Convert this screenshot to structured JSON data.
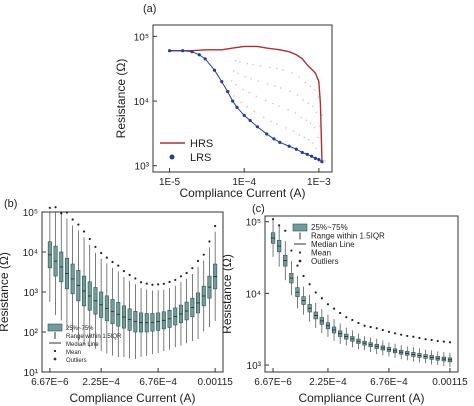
{
  "colors": {
    "hrs": "#b03030",
    "lrs": "#1f3f9f",
    "box_fill": "#6e9d9b",
    "text": "#222222"
  },
  "chart_data": [
    {
      "panel_label": "(a)",
      "type": "line",
      "xscale": "log",
      "yscale": "log",
      "xlabel": "Compliance Current (A)",
      "ylabel": "Resistance (Ω)",
      "x_tick_labels": [
        "1E-5",
        "1E−4",
        "1E−3"
      ],
      "y_tick_labels": [
        "10³",
        "10⁴",
        "10⁵"
      ],
      "xlim": [
        6e-06,
        0.0015
      ],
      "ylim": [
        800,
        150000
      ],
      "legend": {
        "position": "bottom-left",
        "entries": [
          "HRS",
          "LRS"
        ]
      },
      "series": [
        {
          "name": "HRS",
          "marker": "line",
          "x": [
            1e-05,
            2e-05,
            3e-05,
            5e-05,
            7e-05,
            0.0001,
            0.00015,
            0.0002,
            0.0003,
            0.0004,
            0.0005,
            0.0006,
            0.0007,
            0.0008,
            0.0009,
            0.001,
            0.00105,
            0.0011
          ],
          "y": [
            60000,
            60000,
            62000,
            62000,
            66000,
            70000,
            70000,
            66000,
            62000,
            58000,
            52000,
            45000,
            36000,
            31000,
            27000,
            20000,
            9000,
            1200
          ]
        },
        {
          "name": "LRS",
          "marker": "dot",
          "x": [
            1e-05,
            1.5e-05,
            2e-05,
            2.5e-05,
            3e-05,
            4e-05,
            5e-05,
            6e-05,
            7e-05,
            8e-05,
            0.0001,
            0.00012,
            0.00015,
            0.0002,
            0.00025,
            0.0003,
            0.0004,
            0.0005,
            0.0006,
            0.0007,
            0.0008,
            0.0009,
            0.001,
            0.0011
          ],
          "y": [
            60000,
            60000,
            58000,
            52000,
            45000,
            30000,
            20000,
            14000,
            10000,
            8000,
            6000,
            5000,
            4000,
            3100,
            2600,
            2300,
            2000,
            1800,
            1600,
            1500,
            1400,
            1300,
            1250,
            1150
          ]
        }
      ]
    },
    {
      "panel_label": "(b)",
      "type": "box",
      "yscale": "log",
      "xlabel": "Compliance Current (A)",
      "ylabel": "Resistance (Ω)",
      "x_tick_labels": [
        "6.67E−6",
        "2.25E−4",
        "6.76E−4",
        "0.00115"
      ],
      "y_tick_labels": [
        "10¹",
        "10²",
        "10³",
        "10⁴",
        "10⁵"
      ],
      "ylim": [
        10,
        100000
      ],
      "legend": {
        "position": "bottom-left",
        "entries": [
          "25%~75%",
          "Range within 1.5IQR",
          "Median Line",
          "Mean",
          "Outliers"
        ]
      },
      "box_count": 30,
      "q1": [
        4000,
        2500,
        1800,
        1200,
        900,
        600,
        450,
        350,
        280,
        230,
        190,
        160,
        140,
        125,
        110,
        100,
        100,
        100,
        105,
        110,
        120,
        130,
        150,
        170,
        200,
        240,
        300,
        450,
        700,
        1200
      ],
      "q3": [
        18000,
        14000,
        10000,
        7000,
        5000,
        3500,
        2500,
        1800,
        1300,
        1000,
        800,
        650,
        550,
        450,
        380,
        330,
        300,
        290,
        290,
        300,
        320,
        350,
        400,
        470,
        560,
        700,
        950,
        1400,
        2500,
        5000
      ]
    },
    {
      "panel_label": "(c)",
      "type": "box",
      "yscale": "log",
      "xlabel": "Compliance Current (A)",
      "ylabel": "Resistance (Ω)",
      "x_tick_labels": [
        "6.67E−6",
        "2.25E−4",
        "6.76E−4",
        "0.00115"
      ],
      "y_tick_labels": [
        "10³",
        "10⁴",
        "10⁵"
      ],
      "ylim": [
        800,
        120000
      ],
      "legend": {
        "position": "top-left",
        "entries": [
          "25%~75%",
          "Range within 1.5IQR",
          "Median Line",
          "Mean",
          "Outliers"
        ]
      },
      "box_count": 30,
      "q1": [
        50000,
        38000,
        24000,
        14000,
        9000,
        7000,
        5500,
        4400,
        3700,
        3200,
        2800,
        2500,
        2300,
        2150,
        2000,
        1900,
        1800,
        1700,
        1620,
        1550,
        1480,
        1420,
        1370,
        1320,
        1280,
        1240,
        1200,
        1170,
        1140,
        1110
      ],
      "q3": [
        70000,
        55000,
        34000,
        19000,
        12000,
        9000,
        7000,
        5500,
        4600,
        3900,
        3400,
        3000,
        2700,
        2500,
        2300,
        2150,
        2050,
        1950,
        1850,
        1760,
        1680,
        1610,
        1550,
        1500,
        1450,
        1400,
        1360,
        1320,
        1290,
        1260
      ]
    }
  ]
}
